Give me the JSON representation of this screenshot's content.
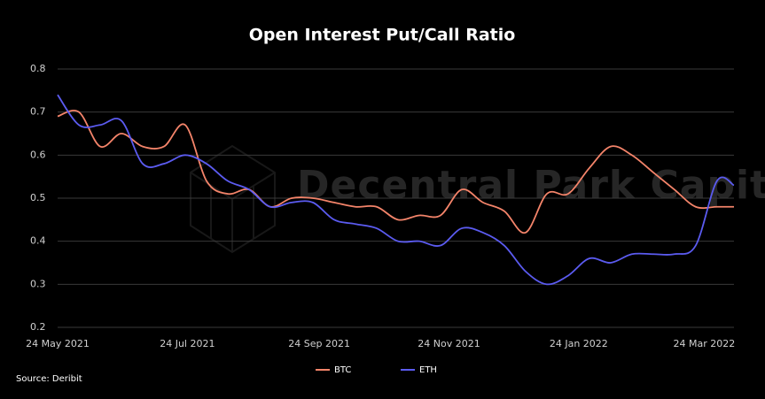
{
  "chart_data": {
    "type": "line",
    "title": "Open Interest Put/Call Ratio",
    "watermark": "Decentral Park Capital",
    "source": "Source: Deribit",
    "x": [
      "2021-05-24",
      "2021-06-03",
      "2021-06-13",
      "2021-06-23",
      "2021-07-03",
      "2021-07-13",
      "2021-07-23",
      "2021-08-02",
      "2021-08-12",
      "2021-08-22",
      "2021-09-01",
      "2021-09-11",
      "2021-09-21",
      "2021-10-01",
      "2021-10-11",
      "2021-10-21",
      "2021-10-31",
      "2021-11-10",
      "2021-11-20",
      "2021-11-30",
      "2021-12-10",
      "2021-12-20",
      "2021-12-30",
      "2022-01-09",
      "2022-01-19",
      "2022-01-29",
      "2022-02-08",
      "2022-02-18",
      "2022-02-28",
      "2022-03-10",
      "2022-03-20",
      "2022-03-30",
      "2022-04-07"
    ],
    "series": [
      {
        "name": "BTC",
        "color": "#f4846a",
        "values": [
          0.69,
          0.7,
          0.62,
          0.65,
          0.62,
          0.62,
          0.67,
          0.54,
          0.51,
          0.52,
          0.48,
          0.5,
          0.5,
          0.49,
          0.48,
          0.48,
          0.45,
          0.46,
          0.46,
          0.52,
          0.49,
          0.47,
          0.42,
          0.51,
          0.51,
          0.57,
          0.62,
          0.6,
          0.56,
          0.52,
          0.48,
          0.48,
          0.48
        ]
      },
      {
        "name": "ETH",
        "color": "#5b5bf0",
        "values": [
          0.74,
          0.67,
          0.67,
          0.68,
          0.58,
          0.58,
          0.6,
          0.58,
          0.54,
          0.52,
          0.48,
          0.49,
          0.49,
          0.45,
          0.44,
          0.43,
          0.4,
          0.4,
          0.39,
          0.43,
          0.42,
          0.39,
          0.33,
          0.3,
          0.32,
          0.36,
          0.35,
          0.37,
          0.37,
          0.37,
          0.39,
          0.54,
          0.53
        ]
      }
    ],
    "xlim": [
      "2021-05-24",
      "2022-04-07"
    ],
    "xticks": [
      {
        "value": "2021-05-24",
        "label": "24 May 2021"
      },
      {
        "value": "2021-07-24",
        "label": "24 Jul 2021"
      },
      {
        "value": "2021-09-24",
        "label": "24 Sep 2021"
      },
      {
        "value": "2021-11-24",
        "label": "24 Nov 2021"
      },
      {
        "value": "2022-01-24",
        "label": "24 Jan 2022"
      },
      {
        "value": "2022-03-24",
        "label": "24 Mar 2022"
      }
    ],
    "ylim": [
      0.2,
      0.8
    ],
    "yticks": [
      0.2,
      0.3,
      0.4,
      0.5,
      0.6,
      0.7,
      0.8
    ],
    "grid": true,
    "legend": "bottom"
  }
}
